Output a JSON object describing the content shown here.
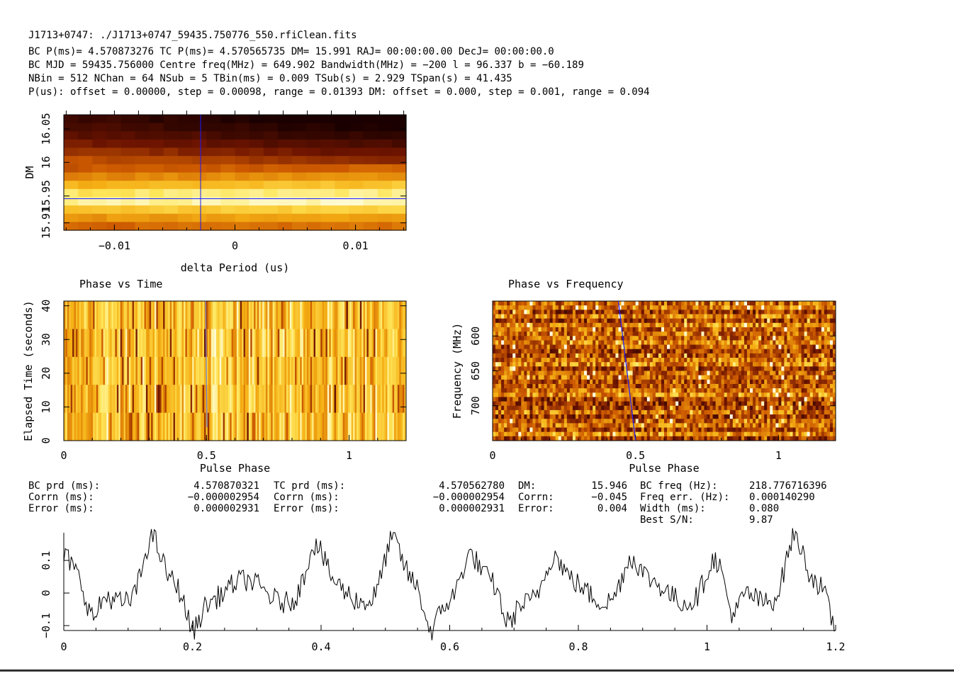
{
  "header": {
    "line1": "J1713+0747: ./J1713+0747_59435.750776_550.rfiClean.fits",
    "line2": "BC P(ms)= 4.570873276 TC P(ms)= 4.570565735 DM= 15.991 RAJ= 00:00:00.00 DecJ= 00:00:00.0",
    "line3": "BC MJD = 59435.756000 Centre freq(MHz) = 649.902 Bandwidth(MHz) = −200 l = 96.337 b = −60.189",
    "line4": "NBin = 512 NChan = 64 NSub = 5 TBin(ms) = 0.009 TSub(s) = 2.929 TSpan(s) = 41.435",
    "line5": "P(us): offset = 0.00000, step = 0.00098, range = 0.01393 DM: offset = 0.000, step = 0.001, range = 0.094"
  },
  "stats": {
    "bc_prd_label": "BC prd (ms):",
    "bc_prd": "4.570870321",
    "corrn1_label": "Corrn (ms):",
    "corrn1": "−0.000002954",
    "error1_label": "Error (ms):",
    "error1": "0.000002931",
    "tc_prd_label": "TC prd (ms):",
    "tc_prd": "4.570562780",
    "corrn2_label": "Corrn (ms):",
    "corrn2": "−0.000002954",
    "error2_label": "Error (ms):",
    "error2": "0.000002931",
    "dm_label": "DM:",
    "dm": "15.946",
    "corrn3_label": "Corrn:",
    "corrn3": "−0.045",
    "error3_label": "Error:",
    "error3": "0.004",
    "bcfreq_label": "BC freq (Hz):",
    "bcfreq": "218.776716396",
    "freqerr_label": "Freq err. (Hz):",
    "freqerr": "0.000140290",
    "width_label": "Width (ms):",
    "width": "0.080",
    "sn_label": "Best S/N:",
    "sn": "9.87"
  },
  "colors": {
    "heat_dark": "#1a0000",
    "heat_mid": "#d25a00",
    "heat_light": "#fffde0",
    "marker": "#1a1aff"
  },
  "chart_data": [
    {
      "type": "heatmap",
      "xlabel": "delta Period (us)",
      "ylabel": "DM",
      "xlim": [
        -0.0142,
        0.0142
      ],
      "ylim": [
        15.899,
        16.071
      ],
      "x_ticks": [
        {
          "v": -0.01,
          "label": "−0.01"
        },
        {
          "v": 0,
          "label": "0"
        },
        {
          "v": 0.01,
          "label": "0.01"
        }
      ],
      "y_ticks": [
        {
          "v": 15.91,
          "label": "15.91"
        },
        {
          "v": 15.95,
          "label": "15.95"
        },
        {
          "v": 16.0,
          "label": "16"
        },
        {
          "v": 16.05,
          "label": "16.05"
        }
      ],
      "best_x": -0.00285,
      "best_y": 15.946
    },
    {
      "type": "heatmap",
      "title": "Phase vs Time",
      "xlabel": "Pulse Phase",
      "ylabel": "Elapsed Time (seconds)",
      "xlim": [
        0,
        1.2
      ],
      "ylim": [
        0,
        41.4
      ],
      "x_ticks": [
        {
          "v": 0,
          "label": "0"
        },
        {
          "v": 0.5,
          "label": "0.5"
        },
        {
          "v": 1,
          "label": "1"
        }
      ],
      "y_ticks": [
        {
          "v": 0,
          "label": "0"
        },
        {
          "v": 10,
          "label": "10"
        },
        {
          "v": 20,
          "label": "20"
        },
        {
          "v": 30,
          "label": "30"
        },
        {
          "v": 40,
          "label": "40"
        }
      ],
      "subints": 5,
      "track": [
        [
          0.497,
          41.4
        ],
        [
          0.502,
          4
        ]
      ]
    },
    {
      "type": "heatmap",
      "title": "Phase vs Frequency",
      "xlabel": "Pulse Phase",
      "ylabel": "Frequency (MHz)",
      "xlim": [
        0,
        1.2
      ],
      "ylim": [
        750,
        550
      ],
      "x_ticks": [
        {
          "v": 0,
          "label": "0"
        },
        {
          "v": 0.5,
          "label": "0.5"
        },
        {
          "v": 1,
          "label": "1"
        }
      ],
      "y_ticks": [
        {
          "v": 600,
          "label": "600"
        },
        {
          "v": 650,
          "label": "650"
        },
        {
          "v": 700,
          "label": "700"
        }
      ],
      "channels": 64,
      "track": [
        [
          0.44,
          550
        ],
        [
          0.5,
          750
        ]
      ]
    },
    {
      "type": "line",
      "xlabel": "",
      "ylabel": "",
      "xlim": [
        0,
        1.2
      ],
      "ylim": [
        -0.115,
        0.185
      ],
      "x_ticks": [
        {
          "v": 0,
          "label": "0"
        },
        {
          "v": 0.2,
          "label": "0.2"
        },
        {
          "v": 0.4,
          "label": "0.4"
        },
        {
          "v": 0.6,
          "label": "0.6"
        },
        {
          "v": 0.8,
          "label": "0.8"
        },
        {
          "v": 1,
          "label": "1"
        },
        {
          "v": 1.2,
          "label": "1.2"
        }
      ],
      "y_ticks": [
        {
          "v": -0.1,
          "label": "−0.1"
        },
        {
          "v": 0,
          "label": "0"
        },
        {
          "v": 0.1,
          "label": "0.1"
        }
      ],
      "peaks": [
        {
          "x": 0.0,
          "y": 0.11
        },
        {
          "x": 0.136,
          "y": 0.155
        },
        {
          "x": 0.39,
          "y": 0.13
        },
        {
          "x": 0.51,
          "y": 0.15
        },
        {
          "x": 0.63,
          "y": 0.11
        },
        {
          "x": 0.76,
          "y": 0.1
        },
        {
          "x": 0.88,
          "y": 0.1
        },
        {
          "x": 1.01,
          "y": 0.09
        },
        {
          "x": 1.135,
          "y": 0.16
        }
      ],
      "troughs": [
        {
          "x": 0.045,
          "y": -0.095
        },
        {
          "x": 0.2,
          "y": -0.085
        },
        {
          "x": 0.57,
          "y": -0.095
        },
        {
          "x": 0.69,
          "y": -0.08
        },
        {
          "x": 1.04,
          "y": -0.095
        },
        {
          "x": 1.2,
          "y": -0.08
        }
      ]
    }
  ]
}
